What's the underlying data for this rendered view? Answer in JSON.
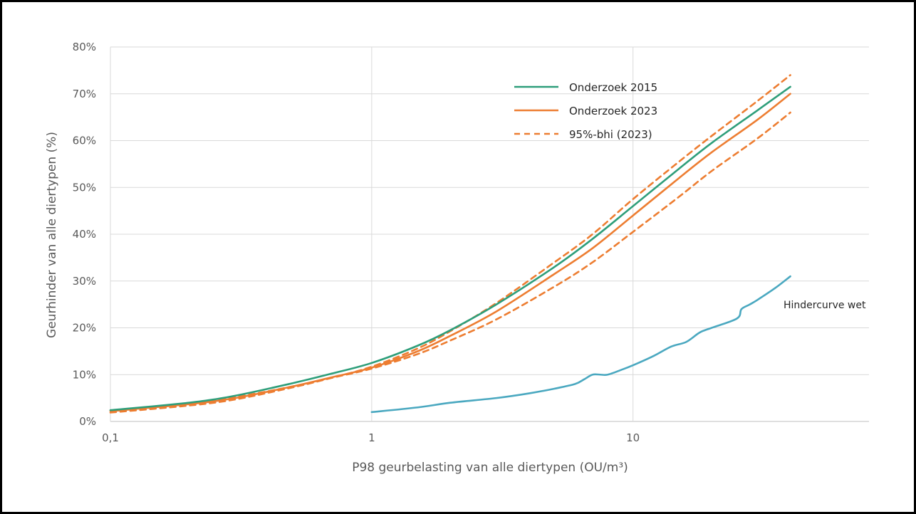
{
  "chart_data": {
    "type": "line",
    "xlabel": "P98 geurbelasting van alle diertypen (OU/m³)",
    "ylabel": "Geurhinder van alle diertypen (%)",
    "x_scale": "log",
    "xlim": [
      0.1,
      80
    ],
    "ylim": [
      0,
      80
    ],
    "x_ticks": [
      0.1,
      1,
      10
    ],
    "x_tick_labels": [
      "0,1",
      "1",
      "10"
    ],
    "y_ticks": [
      0,
      10,
      20,
      30,
      40,
      50,
      60,
      70,
      80
    ],
    "y_tick_labels": [
      "0%",
      "10%",
      "20%",
      "30%",
      "40%",
      "50%",
      "60%",
      "70%",
      "80%"
    ],
    "grid": true,
    "legend_position": "top-right",
    "annotation": "Hindercurve wet",
    "series": [
      {
        "name": "Onderzoek 2015",
        "color": "#2e9e7a",
        "style": "solid",
        "x": [
          0.1,
          0.2,
          0.3,
          0.5,
          0.7,
          1,
          1.5,
          2,
          3,
          5,
          7,
          10,
          15,
          20,
          30,
          40
        ],
        "y": [
          2.4,
          4.0,
          5.5,
          8.2,
          10.2,
          12.5,
          16.2,
          19.5,
          25.0,
          33.0,
          39.0,
          46.0,
          54.0,
          59.5,
          66.5,
          71.5
        ]
      },
      {
        "name": "Onderzoek 2023",
        "color": "#ed7d31",
        "style": "solid",
        "x": [
          0.1,
          0.2,
          0.3,
          0.5,
          0.7,
          1,
          1.5,
          2,
          3,
          5,
          7,
          10,
          15,
          20,
          30,
          40
        ],
        "y": [
          2.2,
          3.7,
          5.0,
          7.5,
          9.4,
          11.5,
          15.0,
          18.3,
          23.5,
          31.5,
          37.0,
          44.0,
          52.0,
          57.5,
          64.5,
          70.0
        ]
      },
      {
        "name": "95%-bhi (2023)",
        "color": "#ed7d31",
        "style": "dashed",
        "x": [
          0.1,
          0.2,
          0.3,
          0.5,
          0.7,
          1,
          1.5,
          2,
          3,
          5,
          7,
          10,
          15,
          20,
          30,
          40
        ],
        "y": [
          1.9,
          3.4,
          4.7,
          7.3,
          9.3,
          11.7,
          15.6,
          19.3,
          25.3,
          34.0,
          40.0,
          47.5,
          55.5,
          61.0,
          68.5,
          74.0
        ]
      },
      {
        "name": "",
        "color": "#ed7d31",
        "style": "dashed",
        "x": [
          0.1,
          0.2,
          0.3,
          0.5,
          0.7,
          1,
          1.5,
          2,
          3,
          5,
          7,
          10,
          15,
          20,
          30,
          40
        ],
        "y": [
          2.3,
          3.9,
          5.2,
          7.5,
          9.3,
          11.3,
          14.4,
          17.3,
          21.8,
          28.8,
          34.0,
          40.5,
          48.0,
          53.5,
          60.5,
          66.0
        ]
      },
      {
        "name": "Hindercurve wet",
        "color": "#4aa8c0",
        "style": "solid",
        "x": [
          1,
          1.5,
          2,
          3,
          4,
          5,
          6,
          6.5,
          7,
          7.5,
          8,
          9,
          10,
          12,
          14,
          16,
          18,
          20,
          25,
          26,
          28,
          30,
          35,
          40
        ],
        "y": [
          2.0,
          3.0,
          4.0,
          5.0,
          6.0,
          7.0,
          8.0,
          9.0,
          10.0,
          10.0,
          10.0,
          11.0,
          12.0,
          14.0,
          16.0,
          17.0,
          19.0,
          20.0,
          22.0,
          24.0,
          25.0,
          26.0,
          28.5,
          31.0
        ]
      }
    ]
  }
}
